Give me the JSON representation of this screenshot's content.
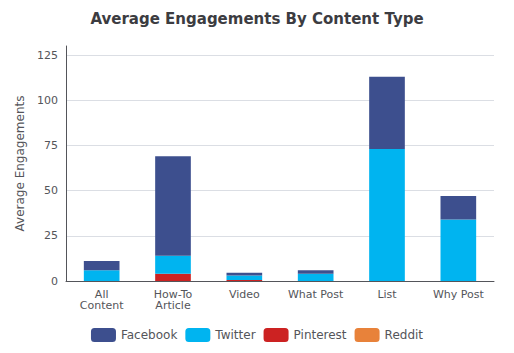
{
  "chart_data": {
    "type": "bar",
    "stacked": true,
    "title": "Average Engagements By Content Type",
    "ylabel": "Average Engagements",
    "categories": [
      "All\nContent",
      "How-To\nArticle",
      "Video",
      "What Post",
      "List",
      "Why Post"
    ],
    "series": [
      {
        "name": "Facebook",
        "color": "#3d4f8e",
        "values": [
          5,
          55,
          1.5,
          2,
          40,
          13
        ]
      },
      {
        "name": "Twitter",
        "color": "#00b4f0",
        "values": [
          6,
          10,
          2.5,
          4,
          73,
          34
        ]
      },
      {
        "name": "Pinterest",
        "color": "#cc2222",
        "values": [
          0,
          4,
          0.5,
          0,
          0,
          0
        ]
      },
      {
        "name": "Reddit",
        "color": "#e8823a",
        "values": [
          0,
          0,
          0,
          0,
          0,
          0
        ]
      }
    ],
    "ylim": [
      0,
      130
    ],
    "yticks": [
      0,
      25,
      50,
      75,
      100,
      125
    ],
    "grid": true,
    "legend": "bottom"
  }
}
